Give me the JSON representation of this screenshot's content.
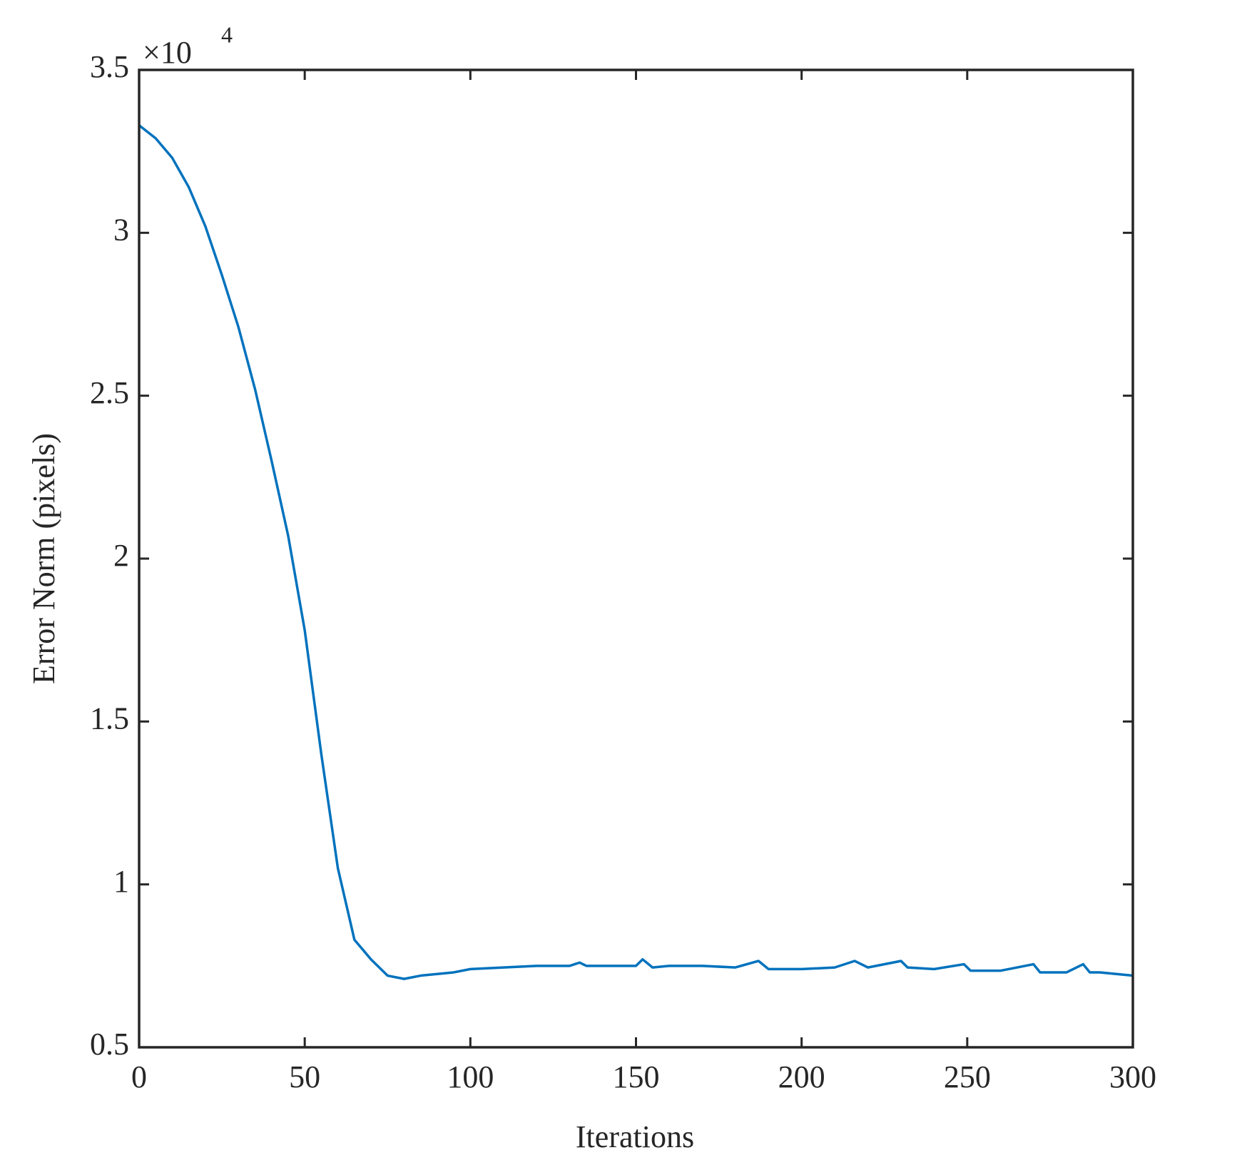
{
  "chart_data": {
    "type": "line",
    "xlabel": "Iterations",
    "ylabel": "Error Norm (pixels)",
    "y_multiplier": {
      "base": "×10",
      "exponent": "4"
    },
    "x": [
      0,
      5,
      10,
      15,
      20,
      25,
      30,
      35,
      40,
      45,
      50,
      55,
      60,
      65,
      70,
      75,
      80,
      85,
      90,
      95,
      100,
      110,
      120,
      130,
      133,
      135,
      140,
      150,
      152,
      155,
      160,
      170,
      180,
      187,
      190,
      200,
      210,
      216,
      220,
      230,
      232,
      240,
      249,
      251,
      260,
      270,
      272,
      280,
      285,
      287,
      290,
      300
    ],
    "series": [
      {
        "name": "Error Norm",
        "color": "#0072bd",
        "values": [
          3.33,
          3.29,
          3.23,
          3.14,
          3.02,
          2.87,
          2.71,
          2.52,
          2.3,
          2.07,
          1.78,
          1.4,
          1.05,
          0.83,
          0.77,
          0.72,
          0.71,
          0.72,
          0.725,
          0.73,
          0.74,
          0.745,
          0.75,
          0.75,
          0.76,
          0.75,
          0.75,
          0.75,
          0.77,
          0.745,
          0.75,
          0.75,
          0.745,
          0.765,
          0.74,
          0.74,
          0.745,
          0.765,
          0.745,
          0.765,
          0.745,
          0.74,
          0.755,
          0.735,
          0.735,
          0.755,
          0.73,
          0.73,
          0.755,
          0.73,
          0.73,
          0.72
        ]
      }
    ],
    "xlim": [
      0,
      300
    ],
    "xticks": [
      0,
      50,
      100,
      150,
      200,
      250,
      300
    ],
    "ylim": [
      0.5,
      3.5
    ],
    "yticks": [
      0.5,
      1,
      1.5,
      2,
      2.5,
      3,
      3.5
    ],
    "grid": false
  }
}
